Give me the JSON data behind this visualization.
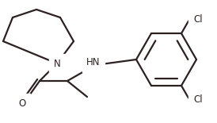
{
  "bg_color": "#ffffff",
  "line_color": "#2d2020",
  "line_width": 1.6,
  "font_size": 8.5,
  "figsize": [
    2.74,
    1.55
  ],
  "dpi": 100,
  "xlim": [
    0.0,
    1.0
  ],
  "ylim": [
    0.0,
    1.0
  ]
}
